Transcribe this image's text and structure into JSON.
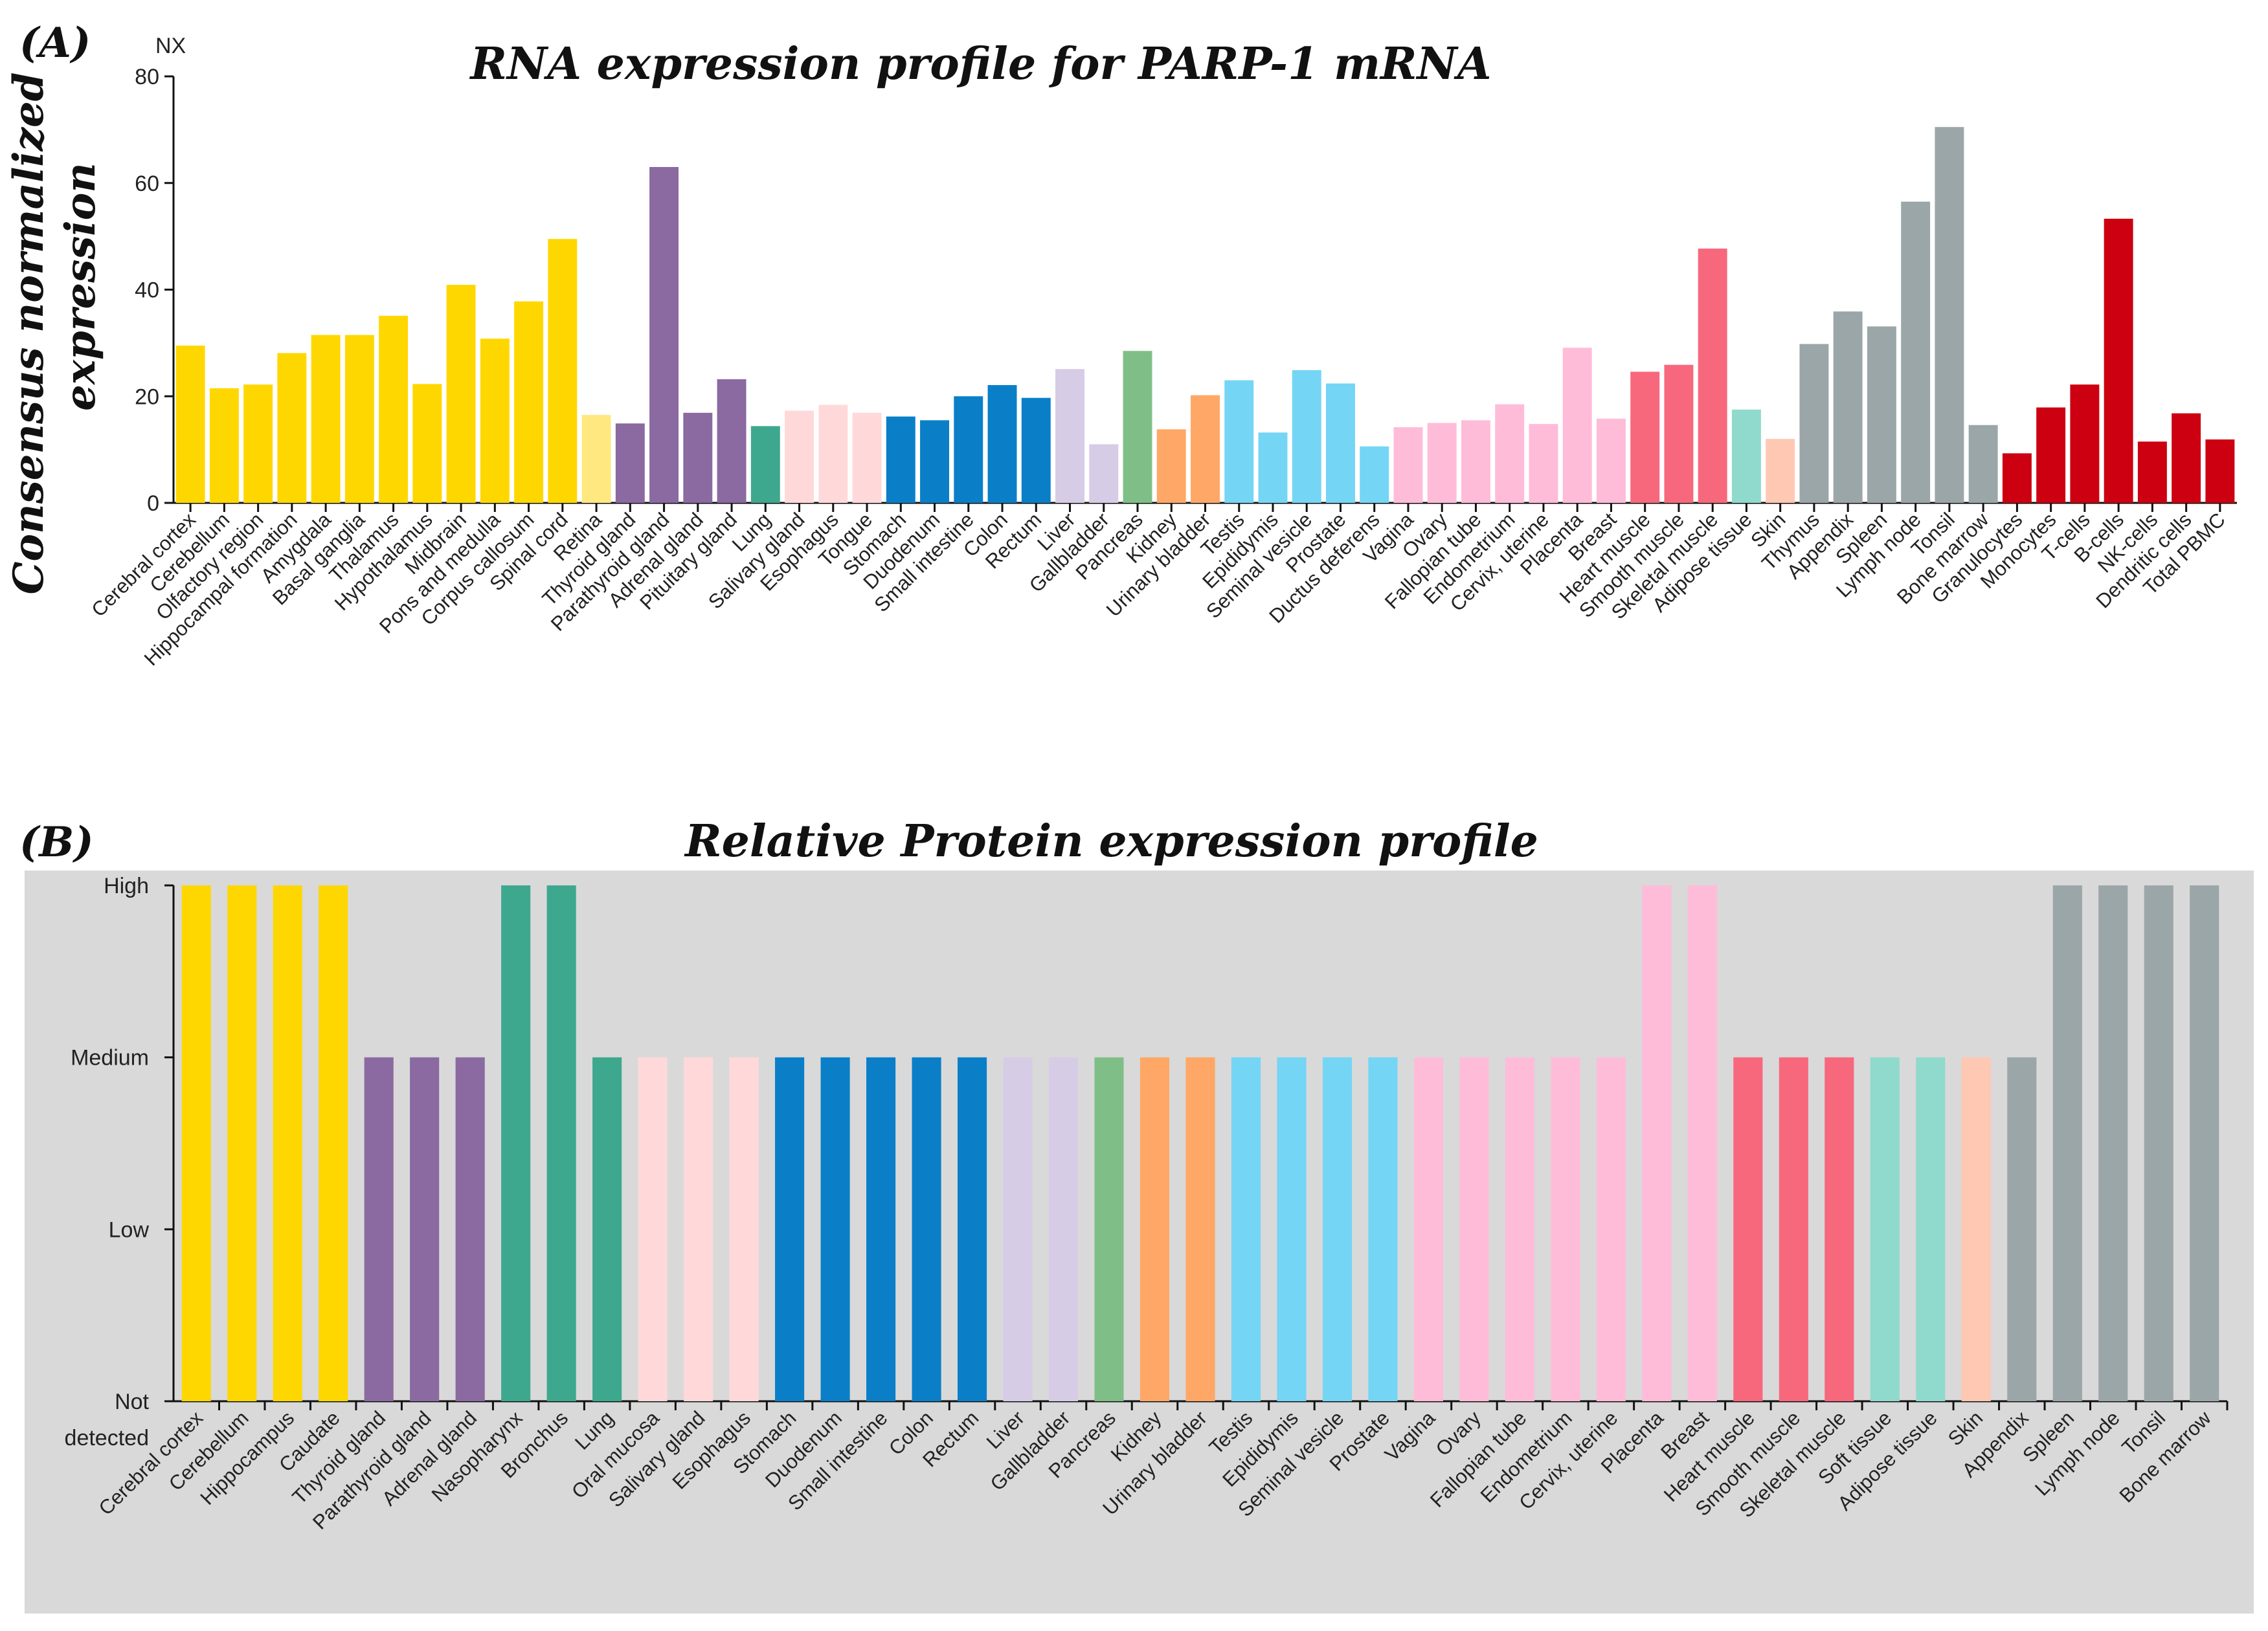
{
  "chart_data": [
    {
      "type": "bar",
      "panel_label": "(A)",
      "title": "RNA expression profile for PARP-1 mRNA",
      "xlabel": "",
      "ylabel_lines": [
        "Consensus normalized",
        "expression"
      ],
      "unit_label": "NX",
      "ylim": [
        0,
        80
      ],
      "yticks": [
        "0",
        "20",
        "40",
        "60",
        "80"
      ],
      "grid": false,
      "categories": [
        "Cerebral cortex",
        "Cerebellum",
        "Olfactory region",
        "Hippocampal formation",
        "Amygdala",
        "Basal ganglia",
        "Thalamus",
        "Hypothalamus",
        "Midbrain",
        "Pons and medulla",
        "Corpus callosum",
        "Spinal cord",
        "Retina",
        "Thyroid gland",
        "Parathyroid gland",
        "Adrenal gland",
        "Pituitary gland",
        "Lung",
        "Salivary gland",
        "Esophagus",
        "Tongue",
        "Stomach",
        "Duodenum",
        "Small intestine",
        "Colon",
        "Rectum",
        "Liver",
        "Gallbladder",
        "Pancreas",
        "Kidney",
        "Urinary bladder",
        "Testis",
        "Epididymis",
        "Seminal vesicle",
        "Prostate",
        "Ductus deferens",
        "Vagina",
        "Ovary",
        "Fallopian tube",
        "Endometrium",
        "Cervix, uterine",
        "Placenta",
        "Breast",
        "Heart muscle",
        "Smooth muscle",
        "Skeletal muscle",
        "Adipose tissue",
        "Skin",
        "Thymus",
        "Appendix",
        "Spleen",
        "Lymph node",
        "Tonsil",
        "Bone marrow",
        "Granulocytes",
        "Monocytes",
        "T-cells",
        "B-cells",
        "NK-cells",
        "Dendritic cells",
        "Total PBMC"
      ],
      "values": [
        29.5,
        21.5,
        22.2,
        28.1,
        31.5,
        31.5,
        35.1,
        22.3,
        40.9,
        30.8,
        37.8,
        49.5,
        16.5,
        14.9,
        63.0,
        16.9,
        23.2,
        14.4,
        17.3,
        18.4,
        16.9,
        16.2,
        15.5,
        20.0,
        22.1,
        19.7,
        25.1,
        11.0,
        28.5,
        13.8,
        20.2,
        23.0,
        13.2,
        24.9,
        22.4,
        10.6,
        14.2,
        15.0,
        15.5,
        18.5,
        14.8,
        29.1,
        15.8,
        24.6,
        25.9,
        47.7,
        17.5,
        12.0,
        29.8,
        35.9,
        33.1,
        56.5,
        70.5,
        14.6,
        9.3,
        17.9,
        22.2,
        53.3,
        11.5,
        16.8,
        11.9
      ],
      "colors": [
        "#FFD700",
        "#FFD700",
        "#FFD700",
        "#FFD700",
        "#FFD700",
        "#FFD700",
        "#FFD700",
        "#FFD700",
        "#FFD700",
        "#FFD700",
        "#FFD700",
        "#FFD700",
        "#FFE880",
        "#8A6AA0",
        "#8A6AA0",
        "#8A6AA0",
        "#8A6AA0",
        "#3EA88E",
        "#FFD9DA",
        "#FFD9DA",
        "#FFD9DA",
        "#0A7FC8",
        "#0A7FC8",
        "#0A7FC8",
        "#0A7FC8",
        "#0A7FC8",
        "#D7CCE6",
        "#D7CCE6",
        "#7FBF87",
        "#FFA766",
        "#FFA766",
        "#74D5F5",
        "#74D5F5",
        "#74D5F5",
        "#74D5F5",
        "#74D5F5",
        "#FFBCD9",
        "#FFBCD9",
        "#FFBCD9",
        "#FFBCD9",
        "#FFBCD9",
        "#FFBCD9",
        "#FFBCD9",
        "#F7687D",
        "#F7687D",
        "#F7687D",
        "#8FDACC",
        "#FFC8B3",
        "#9BA6A8",
        "#9BA6A8",
        "#9BA6A8",
        "#9BA6A8",
        "#9BA6A8",
        "#9BA6A8",
        "#CC0010",
        "#CC0010",
        "#CC0010",
        "#CC0010",
        "#CC0010",
        "#CC0010",
        "#CC0010"
      ]
    },
    {
      "type": "bar",
      "panel_label": "(B)",
      "title": "Relative Protein expression profile",
      "xlabel": "",
      "ylabel": "",
      "ylim": [
        0,
        3
      ],
      "level_labels": [
        "Not",
        "detected",
        "Low",
        "Medium",
        "High"
      ],
      "grid": false,
      "background": "#D9D9D9",
      "categories": [
        "Cerebral cortex",
        "Cerebellum",
        "Hippocampus",
        "Caudate",
        "Thyroid gland",
        "Parathyroid gland",
        "Adrenal gland",
        "Nasopharynx",
        "Bronchus",
        "Lung",
        "Oral mucosa",
        "Salivary gland",
        "Esophagus",
        "Stomach",
        "Duodenum",
        "Small intestine",
        "Colon",
        "Rectum",
        "Liver",
        "Gallbladder",
        "Pancreas",
        "Kidney",
        "Urinary bladder",
        "Testis",
        "Epididymis",
        "Seminal vesicle",
        "Prostate",
        "Vagina",
        "Ovary",
        "Fallopian tube",
        "Endometrium",
        "Cervix, uterine",
        "Placenta",
        "Breast",
        "Heart muscle",
        "Smooth muscle",
        "Skeletal muscle",
        "Soft tissue",
        "Adipose tissue",
        "Skin",
        "Appendix",
        "Spleen",
        "Lymph node",
        "Tonsil",
        "Bone marrow"
      ],
      "values": [
        3,
        3,
        3,
        3,
        2,
        2,
        2,
        3,
        3,
        2,
        2,
        2,
        2,
        2,
        2,
        2,
        2,
        2,
        2,
        2,
        2,
        2,
        2,
        2,
        2,
        2,
        2,
        2,
        2,
        2,
        2,
        2,
        3,
        3,
        2,
        2,
        2,
        2,
        2,
        2,
        2,
        3,
        3,
        3,
        3
      ],
      "colors": [
        "#FFD700",
        "#FFD700",
        "#FFD700",
        "#FFD700",
        "#8A6AA0",
        "#8A6AA0",
        "#8A6AA0",
        "#3EA88E",
        "#3EA88E",
        "#3EA88E",
        "#FFD9DA",
        "#FFD9DA",
        "#FFD9DA",
        "#0A7FC8",
        "#0A7FC8",
        "#0A7FC8",
        "#0A7FC8",
        "#0A7FC8",
        "#D7CCE6",
        "#D7CCE6",
        "#7FBF87",
        "#FFA766",
        "#FFA766",
        "#74D5F5",
        "#74D5F5",
        "#74D5F5",
        "#74D5F5",
        "#FFBCD9",
        "#FFBCD9",
        "#FFBCD9",
        "#FFBCD9",
        "#FFBCD9",
        "#FFBCD9",
        "#FFBCD9",
        "#F7687D",
        "#F7687D",
        "#F7687D",
        "#8FDACC",
        "#8FDACC",
        "#FFC8B3",
        "#9BA6A8",
        "#9BA6A8",
        "#9BA6A8",
        "#9BA6A8",
        "#9BA6A8"
      ]
    }
  ]
}
